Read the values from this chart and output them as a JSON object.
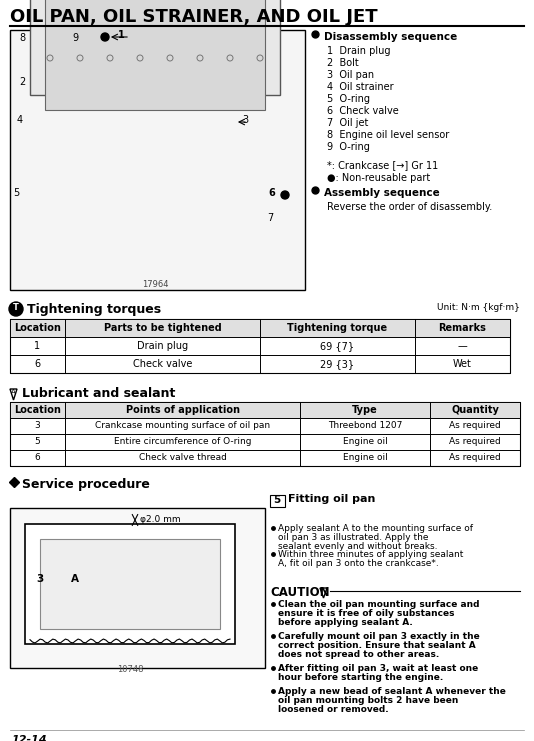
{
  "title": "OIL PAN, OIL STRAINER, AND OIL JET",
  "bg_color": "#ffffff",
  "page_number": "12-14",
  "disassembly_title": "Disassembly sequence",
  "disassembly_items": [
    "1  Drain plug",
    "2  Bolt",
    "3  Oil pan",
    "4  Oil strainer",
    "5  O-ring",
    "6  Check valve",
    "7  Oil jet",
    "8  Engine oil level sensor",
    "9  O-ring"
  ],
  "note1": "*: Crankcase [→] Gr 11",
  "note2": "●: Non-reusable part",
  "assembly_title": "Assembly sequence",
  "assembly_text": "Reverse the order of disassembly.",
  "tightening_title": "Tightening torques",
  "tightening_unit": "Unit: N·m {kgf·m}",
  "tightening_headers": [
    "Location",
    "Parts to be tightened",
    "Tightening torque",
    "Remarks"
  ],
  "tightening_rows": [
    [
      "1",
      "Drain plug",
      "69 {7}",
      "—"
    ],
    [
      "6",
      "Check valve",
      "29 {3}",
      "Wet"
    ]
  ],
  "lubricant_title": "Lubricant and sealant",
  "lubricant_headers": [
    "Location",
    "Points of application",
    "Type",
    "Quantity"
  ],
  "lubricant_rows": [
    [
      "3",
      "Crankcase mounting surface of oil pan",
      "Threebond 1207",
      "As required"
    ],
    [
      "5",
      "Entire circumference of O-ring",
      "Engine oil",
      "As required"
    ],
    [
      "6",
      "Check valve thread",
      "Engine oil",
      "As required"
    ]
  ],
  "service_title": "Service procedure",
  "service_step": "5  Fitting oil pan",
  "service_bullets": [
    "Apply sealant A to the mounting surface of oil pan 3 as illustrated. Apply the sealant evenly and without breaks.",
    "Within three minutes of applying sealant A, fit oil pan 3 onto the crankcase*."
  ],
  "caution_title": "CAUTION",
  "caution_bullets": [
    "Clean the oil pan mounting surface and ensure it is free of oily substances before applying sealant A.",
    "Carefully mount oil pan 3 exactly in the correct position. Ensure that sealant A does not spread to other areas.",
    "After fitting oil pan 3, wait at least one hour before starting the engine.",
    "Apply a new bead of sealant A whenever the oil pan mounting bolts 2 have been loosened or removed."
  ],
  "diagram1_note": "17964",
  "diagram2_note": "10748",
  "diagram2_dim": "φ2.0 mm"
}
